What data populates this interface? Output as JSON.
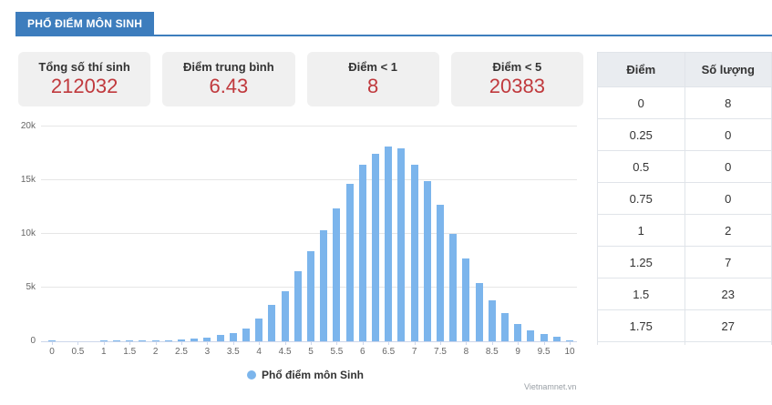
{
  "header": {
    "tab_label": "PHỔ ĐIỂM MÔN SINH"
  },
  "stats": [
    {
      "label": "Tổng số thí sinh",
      "value": "212032"
    },
    {
      "label": "Điểm trung bình",
      "value": "6.43"
    },
    {
      "label": "Điểm < 1",
      "value": "8"
    },
    {
      "label": "Điểm < 5",
      "value": "20383"
    }
  ],
  "table": {
    "columns": [
      "Điểm",
      "Số lượng"
    ],
    "rows": [
      [
        "0",
        "8"
      ],
      [
        "0.25",
        "0"
      ],
      [
        "0.5",
        "0"
      ],
      [
        "0.75",
        "0"
      ],
      [
        "1",
        "2"
      ],
      [
        "1.25",
        "7"
      ],
      [
        "1.5",
        "23"
      ],
      [
        "1.75",
        "27"
      ]
    ]
  },
  "chart_data": {
    "type": "bar",
    "title": "Phổ điểm môn Sinh",
    "legend_label": "Phổ điểm môn Sinh",
    "legend_position": "bottom-center",
    "grid": true,
    "xlabel": "",
    "ylabel": "",
    "xlim": [
      0,
      10
    ],
    "ylim": [
      0,
      20000
    ],
    "x": [
      0,
      0.25,
      0.5,
      0.75,
      1,
      1.25,
      1.5,
      1.75,
      2,
      2.25,
      2.5,
      2.75,
      3,
      3.25,
      3.5,
      3.75,
      4,
      4.25,
      4.5,
      4.75,
      5,
      5.25,
      5.5,
      5.75,
      6,
      6.25,
      6.5,
      6.75,
      7,
      7.25,
      7.5,
      7.75,
      8,
      8.25,
      8.5,
      8.75,
      9,
      9.25,
      9.5,
      9.75,
      10
    ],
    "values": [
      8,
      0,
      0,
      0,
      2,
      7,
      23,
      27,
      50,
      90,
      150,
      240,
      380,
      570,
      800,
      1200,
      2100,
      3350,
      4700,
      6500,
      8350,
      10300,
      12400,
      14700,
      16400,
      17500,
      18100,
      18000,
      16400,
      14900,
      12750,
      10000,
      7700,
      5400,
      3800,
      2650,
      1650,
      1030,
      650,
      390,
      50
    ],
    "x_ticks": [
      {
        "label": "0",
        "value": 0
      },
      {
        "label": "0.5",
        "value": 0.5
      },
      {
        "label": "1",
        "value": 1
      },
      {
        "label": "1.5",
        "value": 1.5
      },
      {
        "label": "2",
        "value": 2
      },
      {
        "label": "2.5",
        "value": 2.5
      },
      {
        "label": "3",
        "value": 3
      },
      {
        "label": "3.5",
        "value": 3.5
      },
      {
        "label": "4",
        "value": 4
      },
      {
        "label": "4.5",
        "value": 4.5
      },
      {
        "label": "5",
        "value": 5
      },
      {
        "label": "5.5",
        "value": 5.5
      },
      {
        "label": "6",
        "value": 6
      },
      {
        "label": "6.5",
        "value": 6.5
      },
      {
        "label": "7",
        "value": 7
      },
      {
        "label": "7.5",
        "value": 7.5
      },
      {
        "label": "8",
        "value": 8
      },
      {
        "label": "8.5",
        "value": 8.5
      },
      {
        "label": "9",
        "value": 9
      },
      {
        "label": "9.5",
        "value": 9.5
      },
      {
        "label": "10",
        "value": 10
      }
    ],
    "y_ticks": [
      {
        "label": "0",
        "value": 0
      },
      {
        "label": "5k",
        "value": 5000
      },
      {
        "label": "10k",
        "value": 10000
      },
      {
        "label": "15k",
        "value": 15000
      },
      {
        "label": "20k",
        "value": 20000
      }
    ],
    "bar_color": "#7cb5ec"
  },
  "watermark": "Vietnamnet.vn",
  "colors": {
    "accent_blue": "#3d7dbd",
    "stat_value_red": "#c0393d",
    "bar_blue": "#7cb5ec",
    "card_bg": "#f0f0f0",
    "table_header_bg": "#e9ecf0"
  }
}
